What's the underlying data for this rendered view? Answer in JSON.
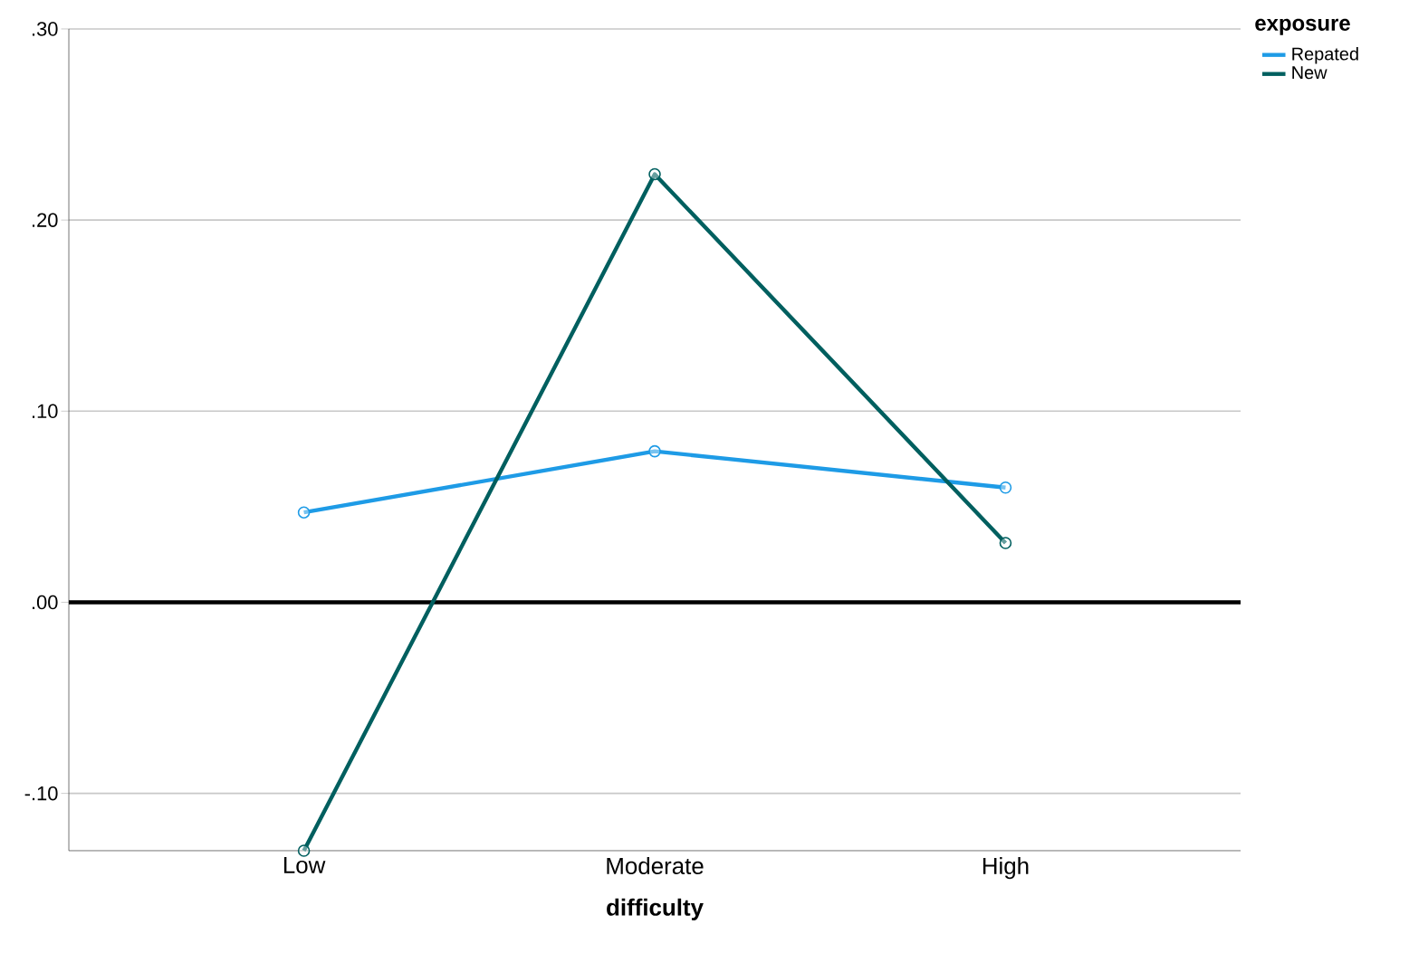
{
  "chart_data": {
    "type": "line",
    "xlabel": "difficulty",
    "legend_title": "exposure",
    "categories": [
      "Low",
      "Moderate",
      "High"
    ],
    "series": [
      {
        "name": "Repated",
        "color": "#1e9be6",
        "values": [
          0.047,
          0.079,
          0.06
        ]
      },
      {
        "name": "New",
        "color": "#005f5f",
        "values": [
          -0.13,
          0.224,
          0.031
        ]
      }
    ],
    "ylim": [
      -0.13,
      0.3
    ],
    "yticks": [
      {
        "value": -0.1,
        "label": "-.10"
      },
      {
        "value": 0.0,
        "label": ".00"
      },
      {
        "value": 0.1,
        "label": ".10"
      },
      {
        "value": 0.2,
        "label": ".20"
      },
      {
        "value": 0.3,
        "label": ".30"
      }
    ],
    "ref_lines": [
      {
        "axis": "y",
        "value": 0.0,
        "color": "#000000"
      }
    ],
    "grid": "y",
    "legend": "top right",
    "marker": "circle",
    "line_style": "solid"
  }
}
